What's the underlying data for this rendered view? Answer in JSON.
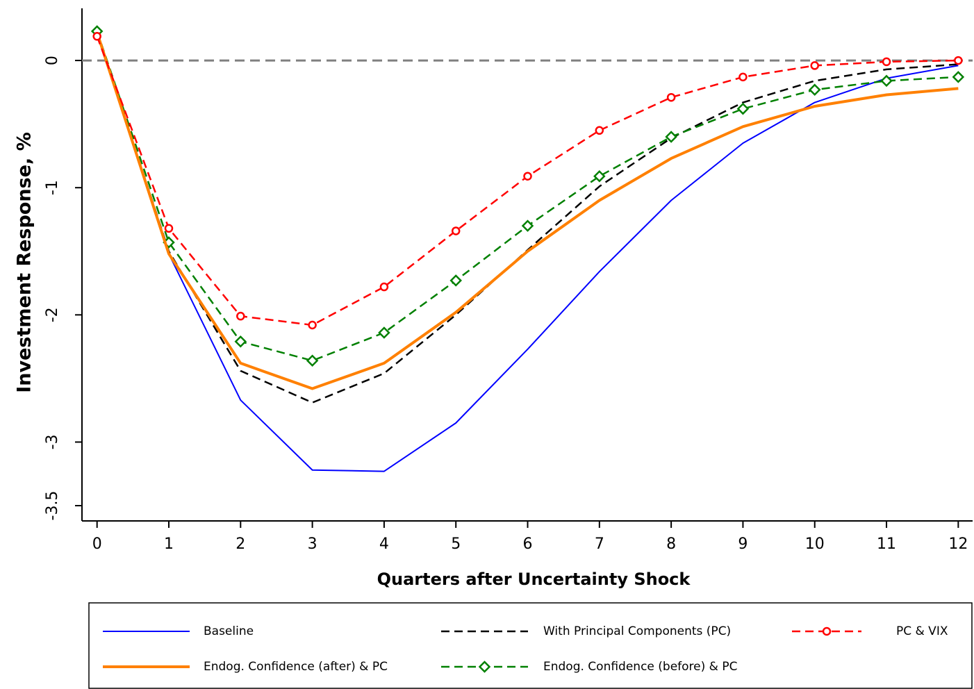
{
  "chart_data": {
    "type": "line",
    "xlabel": "Quarters after Uncertainty Shock",
    "ylabel": "Investment Response, %",
    "x": [
      0,
      1,
      2,
      3,
      4,
      5,
      6,
      7,
      8,
      9,
      10,
      11,
      12
    ],
    "xlim": [
      -0.21,
      12.2
    ],
    "xticks": [
      0,
      1,
      2,
      3,
      4,
      5,
      6,
      7,
      8,
      9,
      10,
      11,
      12
    ],
    "ylim": [
      -3.62,
      0.41
    ],
    "yticks": [
      0,
      -1,
      -2,
      -3,
      -3.5
    ],
    "reference_line": 0,
    "legend": "bottom",
    "series": [
      {
        "name": "Baseline",
        "color": "#0000ff",
        "dash": false,
        "marker": "none",
        "line_width": 2,
        "values": [
          0.22,
          -1.52,
          -2.67,
          -3.22,
          -3.23,
          -2.85,
          -2.27,
          -1.66,
          -1.1,
          -0.65,
          -0.33,
          -0.14,
          -0.04
        ]
      },
      {
        "name": "With Principal Components (PC)",
        "color": "#000000",
        "dash": true,
        "marker": "none",
        "line_width": 2.5,
        "values": [
          0.22,
          -1.5,
          -2.44,
          -2.69,
          -2.46,
          -2.0,
          -1.49,
          -0.99,
          -0.61,
          -0.33,
          -0.16,
          -0.07,
          -0.03
        ]
      },
      {
        "name": "PC & VIX",
        "color": "#ff0000",
        "dash": true,
        "marker": "circle",
        "line_width": 2.5,
        "values": [
          0.19,
          -1.32,
          -2.01,
          -2.08,
          -1.78,
          -1.34,
          -0.91,
          -0.55,
          -0.29,
          -0.13,
          -0.04,
          -0.01,
          0
        ]
      },
      {
        "name": "Endog. Confidence (after) & PC",
        "color": "#ff8000",
        "dash": false,
        "marker": "none",
        "line_width": 4,
        "values": [
          0.22,
          -1.52,
          -2.38,
          -2.58,
          -2.38,
          -1.98,
          -1.5,
          -1.1,
          -0.77,
          -0.52,
          -0.36,
          -0.27,
          -0.22
        ]
      },
      {
        "name": "Endog. Confidence (before) & PC",
        "color": "#008000",
        "dash": true,
        "marker": "diamond",
        "line_width": 2.5,
        "values": [
          0.23,
          -1.43,
          -2.21,
          -2.36,
          -2.14,
          -1.73,
          -1.3,
          -0.91,
          -0.6,
          -0.38,
          -0.23,
          -0.16,
          -0.13
        ]
      }
    ]
  }
}
